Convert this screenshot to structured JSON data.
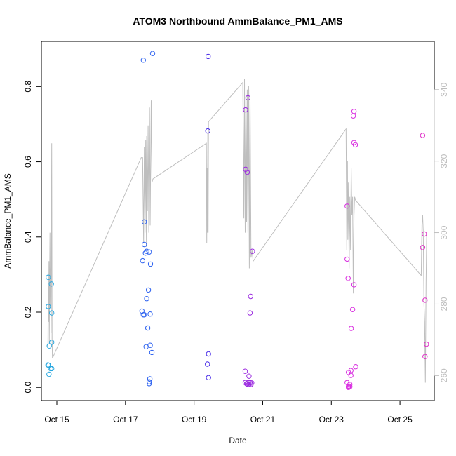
{
  "chart_data": {
    "type": "scatter",
    "title": "ATOM3 Northbound AmmBalance_PM1_AMS",
    "xlabel": "Date",
    "ylabel": "AmmBalance_PM1_AMS",
    "xlim": [
      14.55,
      26.0
    ],
    "ylim": [
      -0.035,
      0.92
    ],
    "y2lim": [
      253.0,
      353.5
    ],
    "x_ticks": [
      15,
      17,
      19,
      21,
      23,
      25
    ],
    "x_tick_labels": [
      "Oct 15",
      "Oct 17",
      "Oct 19",
      "Oct 21",
      "Oct 23",
      "Oct 25"
    ],
    "y_ticks": [
      0.0,
      0.2,
      0.4,
      0.6,
      0.8
    ],
    "y_tick_labels": [
      "0.0",
      "0.2",
      "0.4",
      "0.6",
      "0.8"
    ],
    "y2_ticks": [
      260,
      280,
      300,
      320,
      340
    ],
    "y2_tick_labels": [
      "260",
      "280",
      "300",
      "320",
      "340"
    ],
    "grid": false,
    "colors": {
      "line": "#bebebe",
      "frame": "#000000",
      "right_axis": "#bebebe"
    },
    "series": [
      {
        "color": "#29a8e0",
        "points": [
          [
            14.75,
            0.293
          ],
          [
            14.75,
            0.215
          ],
          [
            14.78,
            0.11
          ],
          [
            14.84,
            0.275
          ],
          [
            14.85,
            0.198
          ],
          [
            14.85,
            0.12
          ],
          [
            14.74,
            0.06
          ],
          [
            14.76,
            0.059
          ],
          [
            14.82,
            0.05
          ],
          [
            14.85,
            0.05
          ],
          [
            14.77,
            0.035
          ]
        ]
      },
      {
        "color": "#2d62f0",
        "points": [
          [
            17.52,
            0.87
          ],
          [
            17.79,
            0.888
          ],
          [
            17.55,
            0.44
          ],
          [
            17.55,
            0.38
          ],
          [
            17.58,
            0.357
          ],
          [
            17.62,
            0.362
          ],
          [
            17.69,
            0.36
          ],
          [
            17.5,
            0.337
          ],
          [
            17.73,
            0.328
          ],
          [
            17.67,
            0.259
          ],
          [
            17.62,
            0.236
          ],
          [
            17.48,
            0.203
          ],
          [
            17.52,
            0.193
          ],
          [
            17.55,
            0.193
          ],
          [
            17.72,
            0.195
          ],
          [
            17.65,
            0.158
          ],
          [
            17.72,
            0.112
          ],
          [
            17.6,
            0.108
          ],
          [
            17.77,
            0.093
          ],
          [
            17.71,
            0.023
          ],
          [
            17.69,
            0.015
          ],
          [
            17.69,
            0.01
          ]
        ]
      },
      {
        "color": "#4a2ee8",
        "points": [
          [
            19.41,
            0.88
          ],
          [
            19.4,
            0.682
          ],
          [
            19.42,
            0.089
          ],
          [
            19.39,
            0.062
          ],
          [
            19.42,
            0.026
          ]
        ]
      },
      {
        "color": "#9b2be0",
        "points": [
          [
            20.57,
            0.77
          ],
          [
            20.5,
            0.738
          ],
          [
            20.5,
            0.58
          ],
          [
            20.55,
            0.572
          ],
          [
            20.7,
            0.362
          ],
          [
            20.65,
            0.242
          ],
          [
            20.63,
            0.198
          ],
          [
            20.49,
            0.043
          ],
          [
            20.6,
            0.03
          ],
          [
            20.49,
            0.013
          ],
          [
            20.53,
            0.01
          ],
          [
            20.58,
            0.013
          ],
          [
            20.63,
            0.013
          ],
          [
            20.68,
            0.012
          ],
          [
            20.55,
            0.009
          ],
          [
            20.6,
            0.008
          ],
          [
            20.66,
            0.008
          ]
        ]
      },
      {
        "color": "#d92ee0",
        "points": [
          [
            23.66,
            0.734
          ],
          [
            23.64,
            0.722
          ],
          [
            23.66,
            0.651
          ],
          [
            23.7,
            0.645
          ],
          [
            23.46,
            0.482
          ],
          [
            23.46,
            0.341
          ],
          [
            23.49,
            0.29
          ],
          [
            23.66,
            0.273
          ],
          [
            23.62,
            0.207
          ],
          [
            23.58,
            0.157
          ],
          [
            23.71,
            0.055
          ],
          [
            23.57,
            0.045
          ],
          [
            23.5,
            0.04
          ],
          [
            23.57,
            0.032
          ],
          [
            23.46,
            0.013
          ],
          [
            23.54,
            0.008
          ],
          [
            23.5,
            0.003
          ],
          [
            23.54,
            0.002
          ],
          [
            23.5,
            0.0
          ]
        ]
      },
      {
        "color": "#e030c8",
        "points": [
          [
            25.66,
            0.67
          ],
          [
            25.71,
            0.408
          ],
          [
            25.66,
            0.372
          ],
          [
            25.73,
            0.232
          ],
          [
            25.77,
            0.115
          ],
          [
            25.73,
            0.082
          ]
        ]
      }
    ],
    "right_axis_line": {
      "color": "#bebebe",
      "points": [
        [
          14.74,
          268
        ],
        [
          14.75,
          285
        ],
        [
          14.76,
          275
        ],
        [
          14.77,
          292
        ],
        [
          14.78,
          269
        ],
        [
          14.79,
          285
        ],
        [
          14.8,
          300
        ],
        [
          14.81,
          279
        ],
        [
          14.82,
          290
        ],
        [
          14.83,
          272
        ],
        [
          14.84,
          300
        ],
        [
          14.85,
          325
        ],
        [
          14.86,
          270
        ],
        [
          14.87,
          265
        ],
        [
          14.88,
          265
        ],
        [
          17.46,
          321
        ],
        [
          17.5,
          321
        ],
        [
          17.53,
          297
        ],
        [
          17.55,
          324
        ],
        [
          17.57,
          300
        ],
        [
          17.59,
          326
        ],
        [
          17.61,
          296
        ],
        [
          17.62,
          327
        ],
        [
          17.64,
          306
        ],
        [
          17.66,
          330
        ],
        [
          17.68,
          300
        ],
        [
          17.7,
          335
        ],
        [
          17.72,
          302
        ],
        [
          17.75,
          337
        ],
        [
          17.77,
          314
        ],
        [
          17.8,
          315
        ],
        [
          19.36,
          325
        ],
        [
          19.37,
          297
        ],
        [
          19.38,
          318
        ],
        [
          19.39,
          300
        ],
        [
          19.4,
          328
        ],
        [
          19.41,
          300
        ],
        [
          19.42,
          331
        ],
        [
          20.42,
          342
        ],
        [
          20.45,
          304
        ],
        [
          20.47,
          343
        ],
        [
          20.49,
          300
        ],
        [
          20.51,
          339
        ],
        [
          20.53,
          303
        ],
        [
          20.55,
          340
        ],
        [
          20.57,
          300
        ],
        [
          20.59,
          341
        ],
        [
          20.61,
          290
        ],
        [
          20.63,
          340
        ],
        [
          20.66,
          293
        ],
        [
          20.69,
          295
        ],
        [
          20.72,
          292
        ],
        [
          23.43,
          329
        ],
        [
          23.45,
          295
        ],
        [
          23.47,
          320
        ],
        [
          23.48,
          298
        ],
        [
          23.5,
          314
        ],
        [
          23.52,
          290
        ],
        [
          23.54,
          310
        ],
        [
          23.56,
          295
        ],
        [
          23.58,
          318
        ],
        [
          23.6,
          305
        ],
        [
          23.62,
          310
        ],
        [
          23.64,
          283
        ],
        [
          23.66,
          305
        ],
        [
          23.68,
          310
        ],
        [
          23.71,
          309
        ],
        [
          25.62,
          288
        ],
        [
          25.64,
          302
        ],
        [
          25.66,
          305
        ],
        [
          25.68,
          300
        ],
        [
          25.7,
          280
        ],
        [
          25.72,
          275
        ],
        [
          25.74,
          258
        ],
        [
          25.76,
          286
        ],
        [
          25.78,
          300
        ]
      ]
    }
  }
}
